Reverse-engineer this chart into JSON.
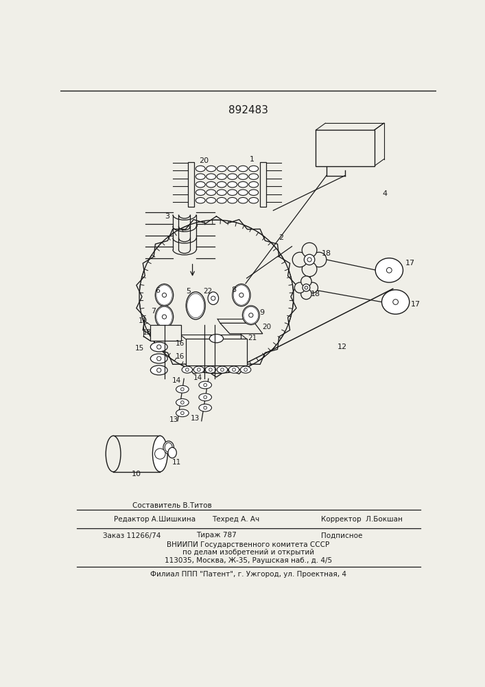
{
  "patent_number": "892483",
  "background_color": "#f0efe8",
  "line_color": "#1a1a1a",
  "footer": {
    "sestavitel": "Составитель В.Титов",
    "editor": "Редактор А.Шишкина",
    "techred": "Техред А. Ач",
    "corrector": "Корректор  Л.Бокшан",
    "order": "Заказ 11266/74",
    "tirage": "Тираж 787",
    "podpisnoe": "Подписное",
    "vniipи": "ВНИИПИ Государственного комитета СССР",
    "line2": "по делам изобретений и открытий",
    "line3": "113035, Москва, Ж-35, Раушская наб., д. 4/5",
    "filial": "Филиал ППП \"Патент\", г. Ужгород, ул. Проектная, 4"
  }
}
